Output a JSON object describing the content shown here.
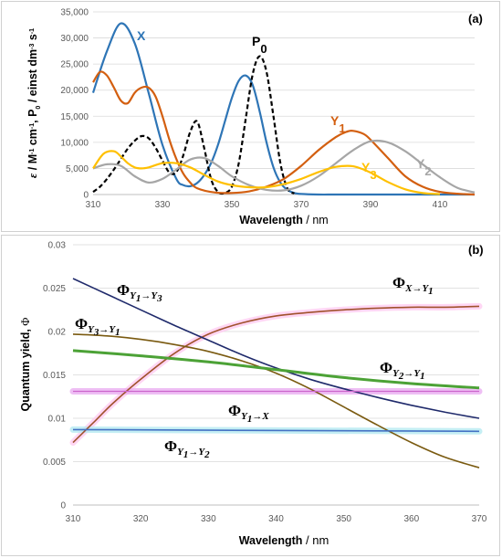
{
  "chart_data": [
    {
      "panel_label": "(a)",
      "type": "line",
      "xlabel": "Wavelength",
      "xunit": "/ nm",
      "ylabel_parts": [
        "ε",
        " / M",
        "-1",
        " cm",
        "-1",
        ", P",
        "0",
        " / einst dm",
        "-3",
        " s",
        "-1"
      ],
      "xlim": [
        310,
        420
      ],
      "ylim": [
        0,
        35000
      ],
      "xticks": [
        310,
        330,
        350,
        370,
        390,
        410
      ],
      "yticks": [
        0,
        5000,
        10000,
        15000,
        20000,
        25000,
        30000,
        35000
      ],
      "ytick_labels": [
        "0",
        "5,000",
        "10,000",
        "15,000",
        "20,000",
        "25,000",
        "30,000",
        "35,000"
      ],
      "series": [
        {
          "name": "X",
          "color": "#2E75B6",
          "dash": false,
          "x": [
            310,
            314,
            318,
            322,
            326,
            330,
            334,
            336,
            338,
            340,
            342,
            344,
            346,
            348,
            350,
            352,
            354,
            356,
            358,
            360,
            362,
            364,
            366,
            368,
            370,
            375,
            380,
            390,
            400,
            410,
            420
          ],
          "y": [
            19500,
            27500,
            32800,
            29000,
            19500,
            9500,
            3000,
            1800,
            1600,
            2200,
            3700,
            6000,
            9500,
            14000,
            18500,
            21800,
            22800,
            21000,
            16000,
            10000,
            5200,
            2300,
            900,
            300,
            100,
            0,
            0,
            0,
            0,
            0,
            0
          ]
        },
        {
          "name": "P0",
          "label_main": "P",
          "label_sub": "0",
          "color": "#000000",
          "dash": true,
          "x": [
            310,
            312,
            314,
            316,
            318,
            320,
            322,
            324,
            326,
            328,
            330,
            332,
            334,
            336,
            338,
            340,
            342,
            344,
            346,
            348,
            350,
            352,
            354,
            356,
            358,
            360,
            362,
            364,
            366,
            368
          ],
          "y": [
            500,
            1500,
            3000,
            4800,
            6800,
            8800,
            10300,
            11200,
            10800,
            9000,
            6500,
            4200,
            4300,
            7500,
            12000,
            14000,
            9000,
            3000,
            500,
            300,
            1500,
            6000,
            14500,
            23000,
            26500,
            23500,
            15000,
            6000,
            1200,
            200
          ]
        },
        {
          "name": "Y1",
          "label_main": "Y",
          "label_sub": "1",
          "color": "#D35F10",
          "dash": false,
          "x": [
            310,
            312,
            314,
            316,
            318,
            320,
            322,
            324,
            326,
            328,
            330,
            332,
            334,
            336,
            338,
            340,
            345,
            350,
            355,
            360,
            365,
            370,
            375,
            380,
            383,
            385,
            388,
            390,
            395,
            400,
            405,
            410,
            415,
            420
          ],
          "y": [
            21500,
            23500,
            22800,
            20500,
            18000,
            17500,
            19500,
            20500,
            20500,
            18800,
            15000,
            10500,
            6800,
            4000,
            2300,
            1200,
            400,
            300,
            600,
            1500,
            3000,
            5500,
            8500,
            11000,
            12000,
            12200,
            11600,
            10500,
            7000,
            3500,
            1500,
            500,
            150,
            0
          ]
        },
        {
          "name": "Y2",
          "label_main": "Y",
          "label_sub": "2",
          "color": "#A6A6A6",
          "dash": false,
          "x": [
            310,
            314,
            318,
            322,
            326,
            330,
            334,
            338,
            342,
            346,
            350,
            355,
            360,
            365,
            370,
            375,
            380,
            385,
            390,
            395,
            400,
            405,
            410,
            415,
            420
          ],
          "y": [
            5000,
            5800,
            5500,
            3500,
            2300,
            3000,
            4800,
            6700,
            7000,
            5500,
            3500,
            1800,
            900,
            800,
            1700,
            3500,
            6000,
            8500,
            10200,
            10000,
            8300,
            5800,
            3300,
            1300,
            400
          ]
        },
        {
          "name": "Y3",
          "label_main": "Y",
          "label_sub": "3",
          "color": "#FFC000",
          "dash": false,
          "x": [
            310,
            313,
            316,
            318,
            320,
            322,
            324,
            326,
            330,
            334,
            338,
            342,
            346,
            350,
            355,
            360,
            365,
            370,
            375,
            380,
            385,
            390,
            395,
            400,
            405,
            410
          ],
          "y": [
            5000,
            7800,
            8300,
            7300,
            6000,
            5200,
            5000,
            5200,
            6000,
            6000,
            5200,
            3800,
            2500,
            1800,
            1400,
            1400,
            2000,
            3000,
            4300,
            5300,
            5400,
            4200,
            2400,
            1000,
            300,
            80
          ]
        }
      ]
    },
    {
      "panel_label": "(b)",
      "type": "line",
      "xlabel": "Wavelength",
      "xunit": "/ nm",
      "ylabel": "Quantum yield,",
      "ylabel_symbol": "Φ",
      "xlim": [
        310,
        370
      ],
      "ylim": [
        0,
        0.03
      ],
      "xticks": [
        310,
        320,
        330,
        340,
        350,
        360,
        370
      ],
      "yticks": [
        0,
        0.005,
        0.01,
        0.015,
        0.02,
        0.025,
        0.03
      ],
      "ytick_labels": [
        "0",
        "0.005",
        "0.01",
        "0.015",
        "0.02",
        "0.025",
        "0.03"
      ],
      "series": [
        {
          "name": "ΦX→Y1",
          "label_main": "Φ",
          "label_sub": "X→Y",
          "label_subsub": "1",
          "color": "#A0522D",
          "highlight": "#FFC8F0",
          "x": [
            310,
            313,
            316,
            320,
            325,
            330,
            335,
            340,
            345,
            350,
            355,
            360,
            365,
            370
          ],
          "y": [
            0.0072,
            0.0095,
            0.0118,
            0.0145,
            0.0175,
            0.0197,
            0.021,
            0.0218,
            0.0222,
            0.0225,
            0.0227,
            0.0228,
            0.0228,
            0.0229
          ]
        },
        {
          "name": "ΦY1→Y3",
          "label_main": "Φ",
          "label_sub": "Y",
          "label_mid": "→Y",
          "label_subsub": "1",
          "label_subsub2": "3",
          "color": "#1F2A6B",
          "highlight": null,
          "x": [
            310,
            315,
            320,
            325,
            330,
            335,
            340,
            345,
            350,
            355,
            360,
            365,
            370
          ],
          "y": [
            0.0261,
            0.0243,
            0.0225,
            0.0207,
            0.019,
            0.0173,
            0.0158,
            0.0145,
            0.0134,
            0.0124,
            0.0115,
            0.0107,
            0.01
          ]
        },
        {
          "name": "ΦY3→Y1",
          "label_main": "Φ",
          "label_sub": "Y",
          "label_mid": "→Y",
          "label_subsub": "3",
          "label_subsub2": "1",
          "color": "#7A5A10",
          "highlight": null,
          "x": [
            310,
            315,
            320,
            325,
            330,
            335,
            340,
            345,
            350,
            355,
            360,
            365,
            370
          ],
          "y": [
            0.0197,
            0.0195,
            0.0191,
            0.0185,
            0.0177,
            0.0166,
            0.0152,
            0.0134,
            0.0113,
            0.0092,
            0.0072,
            0.0055,
            0.0043
          ]
        },
        {
          "name": "ΦY2→Y1",
          "label_main": "Φ",
          "label_sub": "Y",
          "label_mid": "→Y",
          "label_subsub": "2",
          "label_subsub2": "1",
          "color": "#4CA236",
          "highlight": null,
          "x": [
            310,
            320,
            330,
            340,
            350,
            360,
            370
          ],
          "y": [
            0.0178,
            0.0172,
            0.0165,
            0.0156,
            0.0147,
            0.014,
            0.0135
          ]
        },
        {
          "name": "ΦY1→X",
          "label_main": "Φ",
          "label_sub": "Y",
          "label_mid": "→X",
          "label_subsub": "1",
          "color": "#CC66CC",
          "highlight": "#E8A8F0",
          "x": [
            310,
            370
          ],
          "y": [
            0.0131,
            0.0131
          ]
        },
        {
          "name": "ΦY1→Y2",
          "label_main": "Φ",
          "label_sub": "Y",
          "label_mid": "→Y",
          "label_subsub": "1",
          "label_subsub2": "2",
          "color": "#4472C4",
          "highlight": "#B0E8F0",
          "x": [
            310,
            370
          ],
          "y": [
            0.0087,
            0.0085
          ]
        }
      ]
    }
  ]
}
